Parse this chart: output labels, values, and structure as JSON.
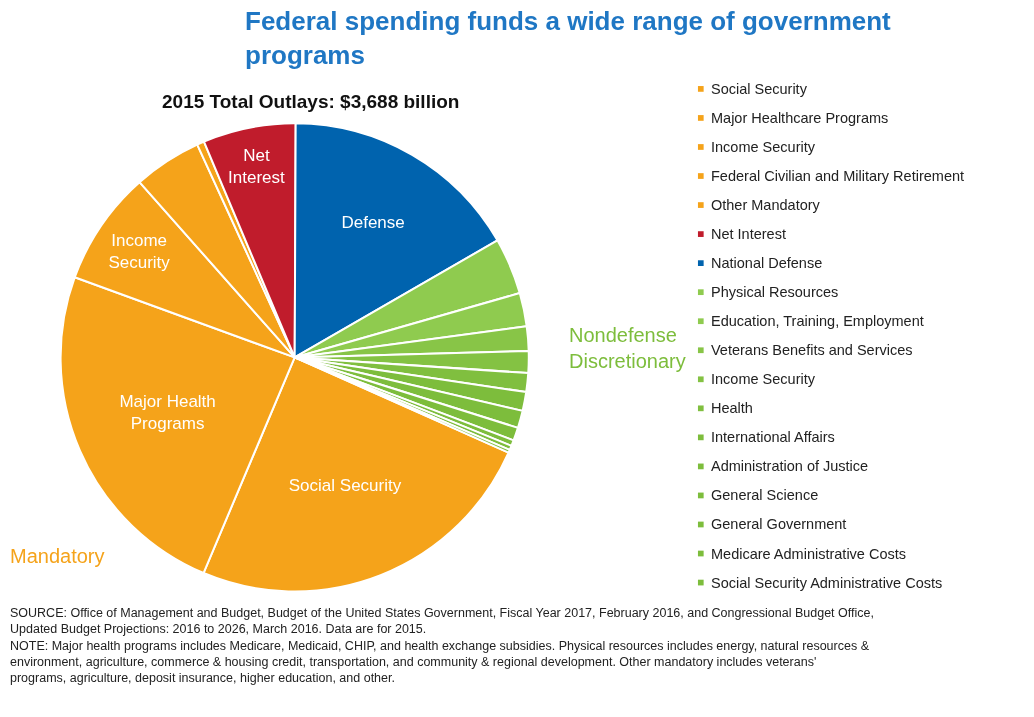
{
  "chart_data": {
    "type": "pie",
    "title": "Federal spending funds a wide range of government programs",
    "subtitle": "2015 Total Outlays: $3,688 billion",
    "categories": [
      "Social Security",
      "Major Healthcare Programs",
      "Income Security",
      "Federal Civilian and Military Retirement",
      "Other Mandatory",
      "Net Interest",
      "National Defense",
      "Physical Resources",
      "Education, Training, Employment",
      "Veterans Benefits and Services",
      "Income Security",
      "Health",
      "International Affairs",
      "Administration of Justice",
      "General Science",
      "General Government",
      "Medicare Administrative Costs",
      "Social Security Administrative Costs"
    ],
    "values": [
      24.7,
      24.2,
      7.9,
      4.7,
      0.5,
      6.4,
      16.6,
      3.9,
      2.3,
      1.7,
      1.5,
      1.3,
      1.3,
      1.2,
      0.9,
      0.4,
      0.3,
      0.2
    ],
    "colors": [
      "#f5a31a",
      "#f5a31a",
      "#f5a31a",
      "#f5a31a",
      "#f5a31a",
      "#c01c2c",
      "#0063ae",
      "#8fcb4f",
      "#8fcb4f",
      "#88c547",
      "#84c243",
      "#80bf3f",
      "#7dbd3c",
      "#7dbd3c",
      "#7dbd3c",
      "#7dbd3c",
      "#7dbd3c",
      "#7dbd3c"
    ],
    "legend": "right",
    "annotations": [
      {
        "text": "Social Security",
        "x": "Social Security"
      },
      {
        "text": "Major Health Programs",
        "x": "Major Healthcare Programs"
      },
      {
        "text": "Income Security",
        "x": "Income Security"
      },
      {
        "text": "Net Interest",
        "x": "Net Interest"
      },
      {
        "text": "Defense",
        "x": "National Defense"
      },
      "Mandatory",
      "Nondefense Discretionary",
      "SOURCE: Office of Management and Budget, Budget of the United States Government, Fiscal Year 2017, February 2016, and Congressional Budget Office, Updated Budget Projections: 2016 to 2026, March 2016. Data are for 2015.",
      "NOTE: Major health programs includes Medicare, Medicaid, CHIP, and health exchange subsidies. Physical resources includes energy, natural resources & environment, agriculture, commerce & housing credit, transportation, and community & regional development. Other mandatory includes veterans' programs, agriculture, deposit insurance, higher education, and other."
    ]
  }
}
